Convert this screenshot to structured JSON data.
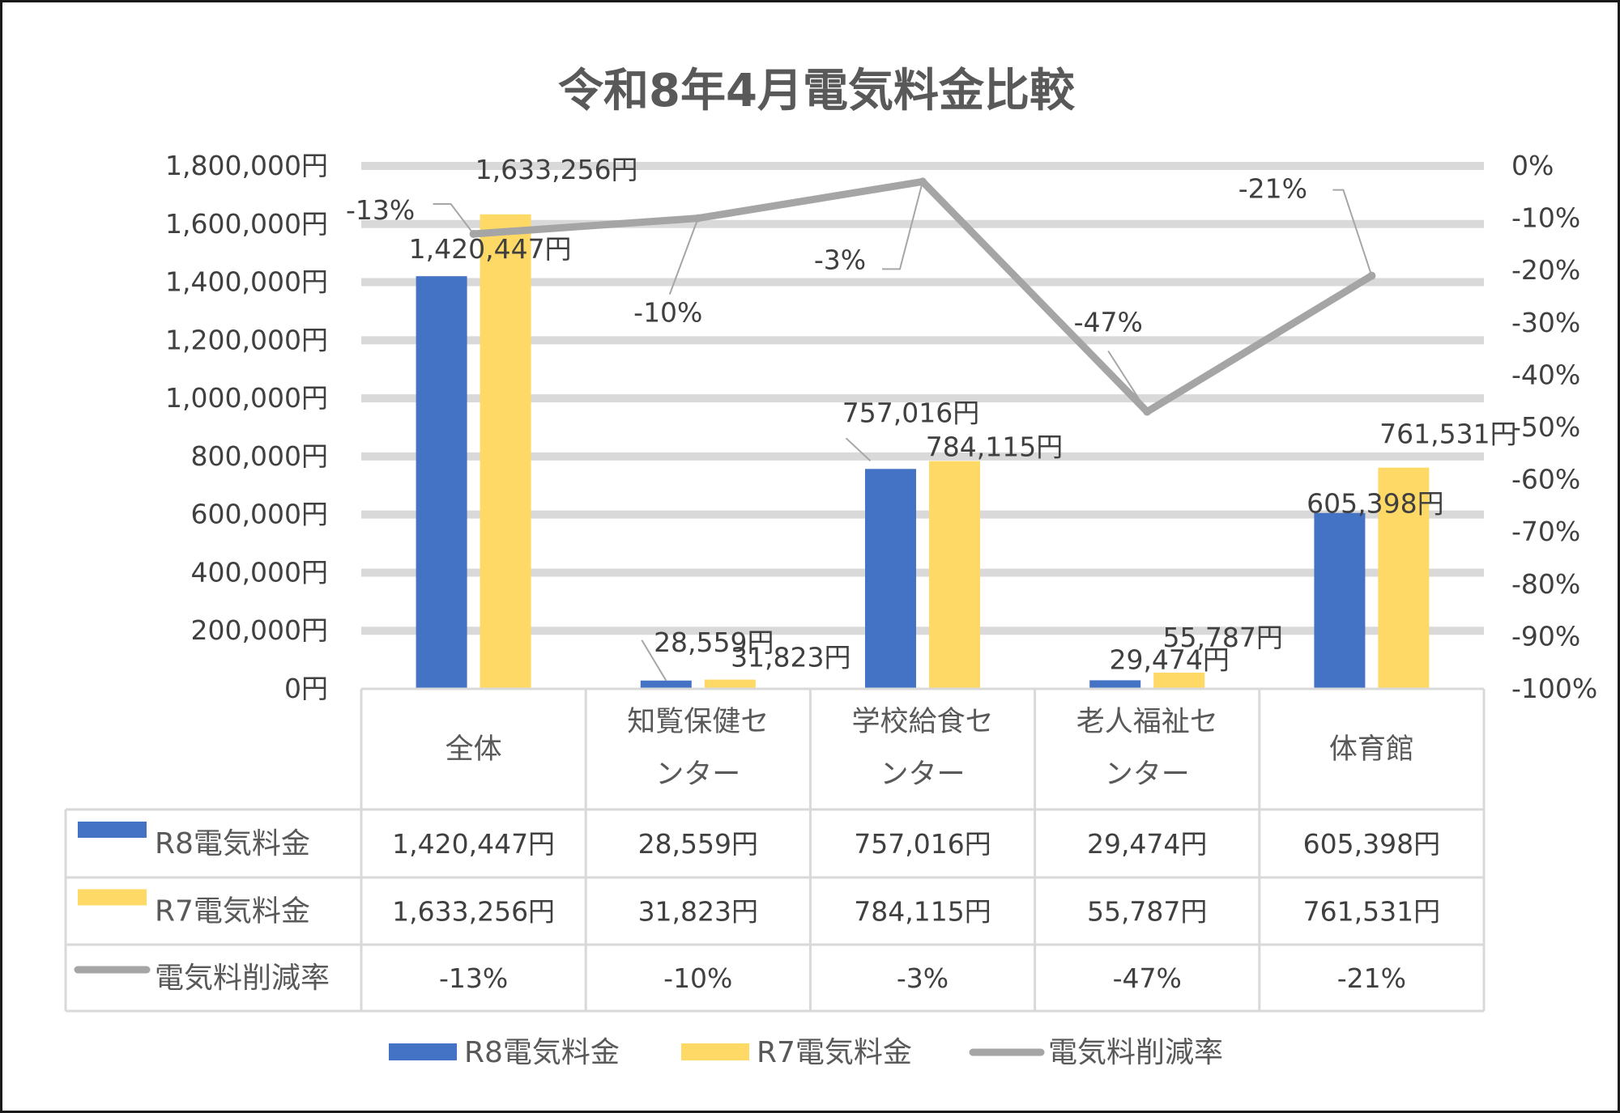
{
  "chart_data": {
    "type": "bar",
    "title": "令和8年4月電気料金比較",
    "categories": [
      "全体",
      "知覧保健センター",
      "学校給食センター",
      "老人福祉センター",
      "体育館"
    ],
    "series": [
      {
        "name": "R8電気料金",
        "kind": "bar",
        "axis": "left",
        "color": "#4472c4",
        "values": [
          1420447,
          28559,
          757016,
          29474,
          605398
        ],
        "labels": [
          "1,420,447円",
          "28,559円",
          "757,016円",
          "29,474円",
          "605,398円"
        ]
      },
      {
        "name": "R7電気料金",
        "kind": "bar",
        "axis": "left",
        "color": "#ffd966",
        "values": [
          1633256,
          31823,
          784115,
          55787,
          761531
        ],
        "labels": [
          "1,633,256円",
          "31,823円",
          "784,115円",
          "55,787円",
          "761,531円"
        ]
      },
      {
        "name": "電気料削減率",
        "kind": "line",
        "axis": "right",
        "color": "#a5a5a5",
        "values": [
          -13,
          -10,
          -3,
          -47,
          -21
        ],
        "labels": [
          "-13%",
          "-10%",
          "-3%",
          "-47%",
          "-21%"
        ]
      }
    ],
    "y_left": {
      "ylim": [
        0,
        1800000
      ],
      "ticks": [
        0,
        200000,
        400000,
        600000,
        800000,
        1000000,
        1200000,
        1400000,
        1600000,
        1800000
      ],
      "tick_labels": [
        "0円",
        "200,000円",
        "400,000円",
        "600,000円",
        "800,000円",
        "1,000,000円",
        "1,200,000円",
        "1,400,000円",
        "1,600,000円",
        "1,800,000円"
      ]
    },
    "y_right": {
      "ylim": [
        -100,
        0
      ],
      "ticks": [
        0,
        -10,
        -20,
        -30,
        -40,
        -50,
        -60,
        -70,
        -80,
        -90,
        -100
      ],
      "tick_labels": [
        "0%",
        "-10%",
        "-20%",
        "-30%",
        "-40%",
        "-50%",
        "-60%",
        "-70%",
        "-80%",
        "-90%",
        "-100%"
      ]
    },
    "grid": true,
    "data_table": true,
    "legend": "bottom"
  }
}
